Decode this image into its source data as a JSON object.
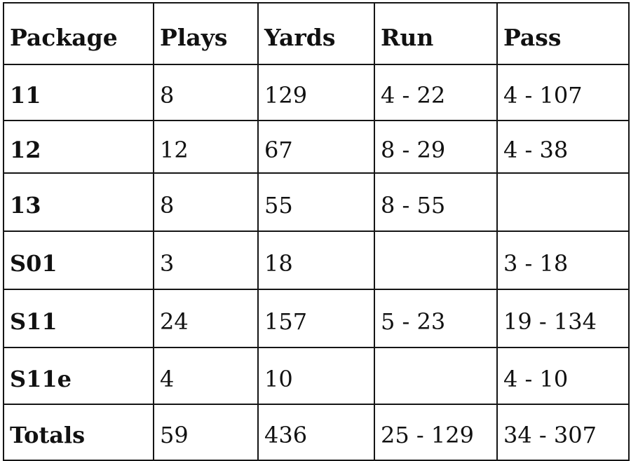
{
  "table": {
    "headers": [
      "Package",
      "Plays",
      "Yards",
      "Run",
      "Pass"
    ],
    "rows": [
      [
        "11",
        "8",
        "129",
        "4 - 22",
        "4 - 107"
      ],
      [
        "12",
        "12",
        "67",
        "8 - 29",
        "4 - 38"
      ],
      [
        "13",
        "8",
        "55",
        "8 - 55",
        ""
      ],
      [
        "S01",
        "3",
        "18",
        "",
        "3 - 18"
      ],
      [
        "S11",
        "24",
        "157",
        "5 - 23",
        "19 - 134"
      ],
      [
        "S11e",
        "4",
        "10",
        "",
        "4 - 10"
      ],
      [
        "Totals",
        "59",
        "436",
        "25 - 129",
        "34 - 307"
      ]
    ]
  }
}
